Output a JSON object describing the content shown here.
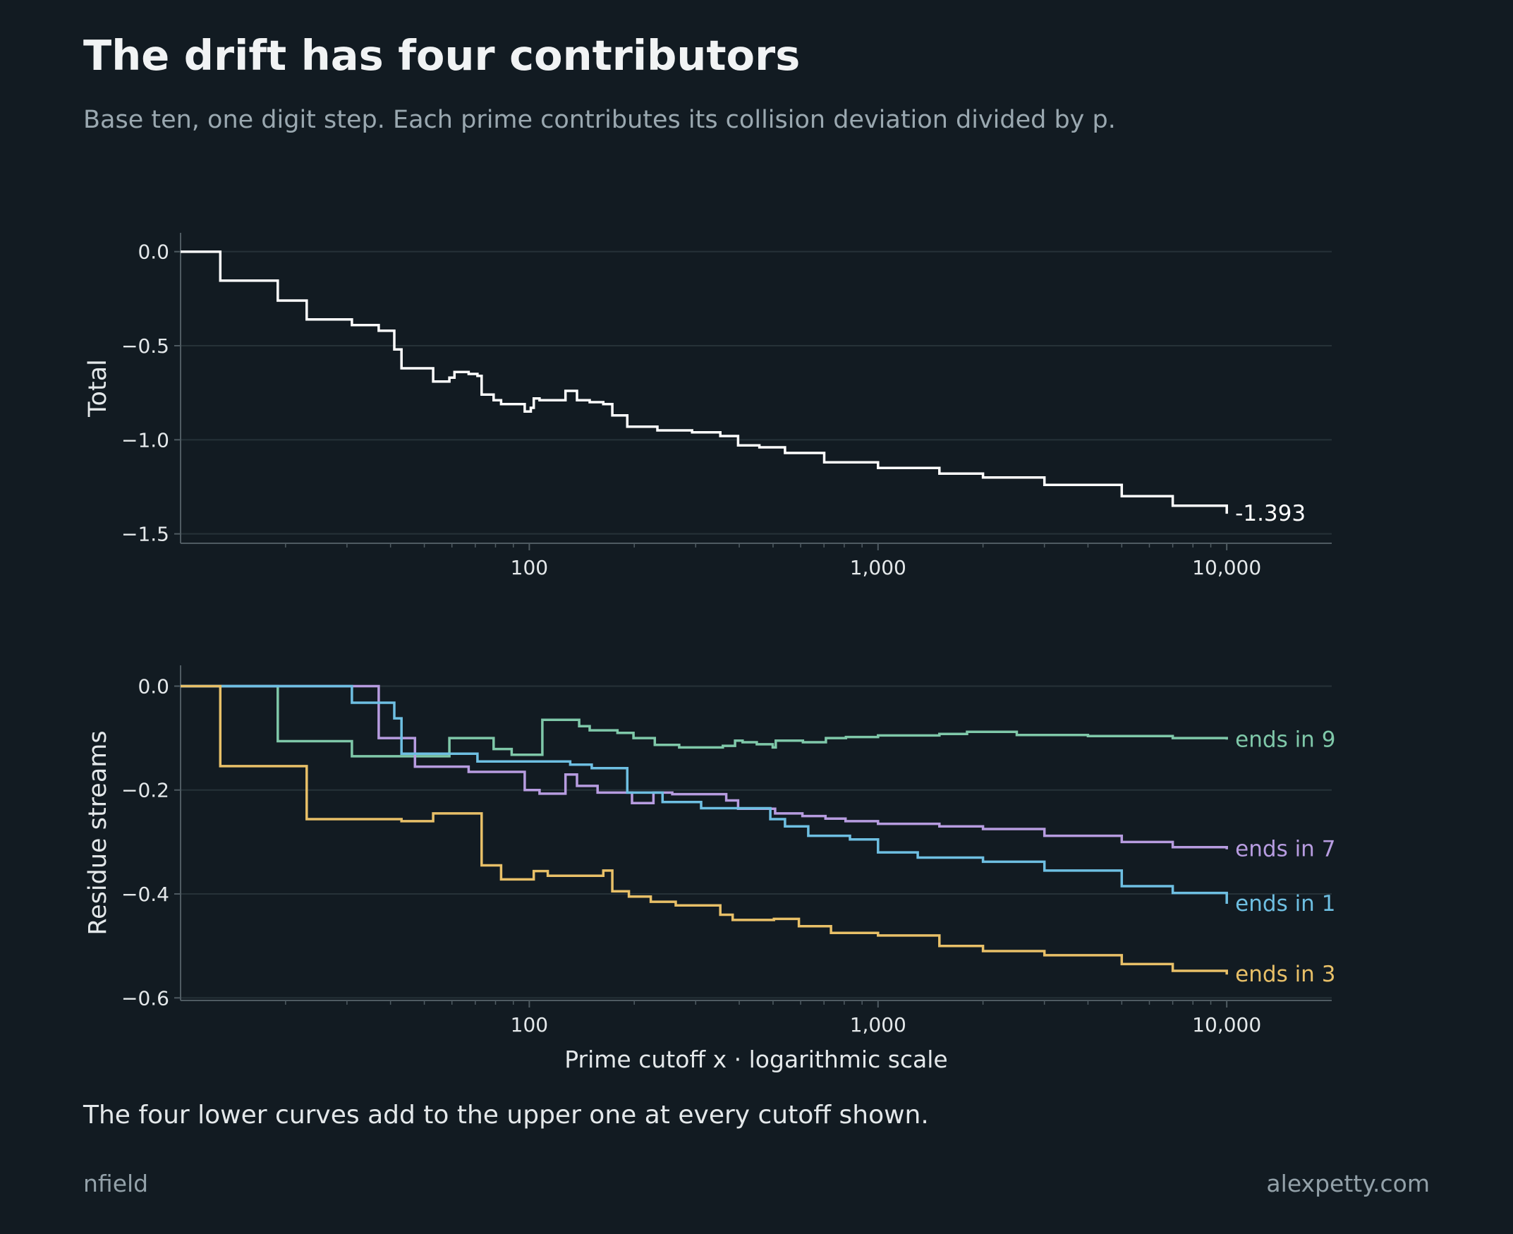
{
  "header": {
    "title": "The drift has four contributors",
    "subtitle": "Base ten, one digit step. Each prime contributes its collision deviation divided by p."
  },
  "caption": "The four lower curves add to the upper one at every cutoff shown.",
  "footer": {
    "left": "nfield",
    "right": "alexpetty.com"
  },
  "colors": {
    "background": "#121b22",
    "grid": "#263238",
    "axis": "#4f5b62",
    "total": "#ffffff",
    "ends_in_9": "#7fc8a9",
    "ends_in_7": "#b79ce0",
    "ends_in_1": "#6ebfe2",
    "ends_in_3": "#e8c068"
  },
  "chart_data": [
    {
      "type": "line",
      "step": true,
      "xscale": "log",
      "xlim": [
        10,
        20000
      ],
      "xticks": [
        100,
        1000,
        10000
      ],
      "xtick_labels": [
        "100",
        "1,000",
        "10,000"
      ],
      "ylim": [
        -1.55,
        0.1
      ],
      "yticks": [
        0.0,
        -0.5,
        -1.0,
        -1.5
      ],
      "ytick_labels": [
        "0.0",
        "−0.5",
        "−1.0",
        "−1.5"
      ],
      "xlabel": "",
      "ylabel": "Total",
      "grid": true,
      "series": [
        {
          "name": "",
          "color": "#ffffff",
          "end_label": "-1.393",
          "points": [
            [
              10,
              0.0
            ],
            [
              13,
              -0.154
            ],
            [
              19,
              -0.26
            ],
            [
              23,
              -0.36
            ],
            [
              31,
              -0.39
            ],
            [
              37,
              -0.42
            ],
            [
              41,
              -0.52
            ],
            [
              43,
              -0.62
            ],
            [
              47,
              -0.62
            ],
            [
              53,
              -0.69
            ],
            [
              59,
              -0.67
            ],
            [
              61,
              -0.64
            ],
            [
              67,
              -0.65
            ],
            [
              71,
              -0.66
            ],
            [
              73,
              -0.76
            ],
            [
              79,
              -0.79
            ],
            [
              83,
              -0.81
            ],
            [
              97,
              -0.85
            ],
            [
              101,
              -0.83
            ],
            [
              103,
              -0.78
            ],
            [
              107,
              -0.79
            ],
            [
              127,
              -0.74
            ],
            [
              137,
              -0.79
            ],
            [
              149,
              -0.8
            ],
            [
              163,
              -0.81
            ],
            [
              173,
              -0.87
            ],
            [
              191,
              -0.93
            ],
            [
              227,
              -0.93
            ],
            [
              233,
              -0.95
            ],
            [
              293,
              -0.96
            ],
            [
              353,
              -0.98
            ],
            [
              397,
              -1.03
            ],
            [
              457,
              -1.04
            ],
            [
              541,
              -1.07
            ],
            [
              701,
              -1.12
            ],
            [
              811,
              -1.12
            ],
            [
              1000,
              -1.15
            ],
            [
              1500,
              -1.18
            ],
            [
              2000,
              -1.2
            ],
            [
              3000,
              -1.24
            ],
            [
              5000,
              -1.3
            ],
            [
              7000,
              -1.35
            ],
            [
              10000,
              -1.393
            ]
          ]
        }
      ]
    },
    {
      "type": "line",
      "step": true,
      "xscale": "log",
      "xlim": [
        10,
        20000
      ],
      "xticks": [
        100,
        1000,
        10000
      ],
      "xtick_labels": [
        "100",
        "1,000",
        "10,000"
      ],
      "ylim": [
        -0.605,
        0.04
      ],
      "yticks": [
        0.0,
        -0.2,
        -0.4,
        -0.6
      ],
      "ytick_labels": [
        "0.0",
        "−0.2",
        "−0.4",
        "−0.6"
      ],
      "xlabel": "Prime cutoff x  ·  logarithmic scale",
      "ylabel": "Residue streams",
      "grid": true,
      "series": [
        {
          "name": "ends in 9",
          "color": "#7fc8a9",
          "points": [
            [
              10,
              0.0
            ],
            [
              19,
              -0.106
            ],
            [
              29,
              -0.106
            ],
            [
              31,
              -0.135
            ],
            [
              59,
              -0.1
            ],
            [
              71,
              -0.1
            ],
            [
              79,
              -0.121
            ],
            [
              89,
              -0.132
            ],
            [
              109,
              -0.065
            ],
            [
              139,
              -0.077
            ],
            [
              149,
              -0.085
            ],
            [
              179,
              -0.09
            ],
            [
              199,
              -0.1
            ],
            [
              229,
              -0.113
            ],
            [
              269,
              -0.118
            ],
            [
              359,
              -0.115
            ],
            [
              389,
              -0.105
            ],
            [
              409,
              -0.108
            ],
            [
              449,
              -0.112
            ],
            [
              499,
              -0.118
            ],
            [
              509,
              -0.105
            ],
            [
              609,
              -0.108
            ],
            [
              709,
              -0.1
            ],
            [
              809,
              -0.098
            ],
            [
              1000,
              -0.095
            ],
            [
              1500,
              -0.092
            ],
            [
              1800,
              -0.088
            ],
            [
              2500,
              -0.094
            ],
            [
              4000,
              -0.096
            ],
            [
              7000,
              -0.1
            ],
            [
              10000,
              -0.103
            ]
          ]
        },
        {
          "name": "ends in 7",
          "color": "#b79ce0",
          "points": [
            [
              10,
              0.0
            ],
            [
              37,
              -0.1
            ],
            [
              47,
              -0.155
            ],
            [
              67,
              -0.165
            ],
            [
              97,
              -0.2
            ],
            [
              107,
              -0.207
            ],
            [
              127,
              -0.17
            ],
            [
              137,
              -0.192
            ],
            [
              157,
              -0.205
            ],
            [
              197,
              -0.225
            ],
            [
              227,
              -0.205
            ],
            [
              257,
              -0.208
            ],
            [
              367,
              -0.22
            ],
            [
              397,
              -0.236
            ],
            [
              507,
              -0.245
            ],
            [
              607,
              -0.25
            ],
            [
              707,
              -0.255
            ],
            [
              807,
              -0.26
            ],
            [
              1000,
              -0.265
            ],
            [
              1500,
              -0.27
            ],
            [
              2000,
              -0.275
            ],
            [
              3000,
              -0.288
            ],
            [
              5000,
              -0.3
            ],
            [
              7000,
              -0.31
            ],
            [
              10000,
              -0.314
            ]
          ]
        },
        {
          "name": "ends in 1",
          "color": "#6ebfe2",
          "points": [
            [
              10,
              0.0
            ],
            [
              31,
              -0.032
            ],
            [
              41,
              -0.062
            ],
            [
              43,
              -0.13
            ],
            [
              71,
              -0.145
            ],
            [
              131,
              -0.151
            ],
            [
              151,
              -0.158
            ],
            [
              191,
              -0.205
            ],
            [
              241,
              -0.223
            ],
            [
              311,
              -0.235
            ],
            [
              491,
              -0.256
            ],
            [
              541,
              -0.27
            ],
            [
              631,
              -0.288
            ],
            [
              831,
              -0.295
            ],
            [
              1000,
              -0.32
            ],
            [
              1300,
              -0.33
            ],
            [
              2000,
              -0.338
            ],
            [
              3000,
              -0.355
            ],
            [
              5000,
              -0.385
            ],
            [
              7000,
              -0.398
            ],
            [
              10000,
              -0.419
            ]
          ]
        },
        {
          "name": "ends in 3",
          "color": "#e8c068",
          "points": [
            [
              10,
              0.0
            ],
            [
              13,
              -0.154
            ],
            [
              23,
              -0.256
            ],
            [
              43,
              -0.26
            ],
            [
              53,
              -0.245
            ],
            [
              73,
              -0.345
            ],
            [
              83,
              -0.372
            ],
            [
              103,
              -0.356
            ],
            [
              113,
              -0.365
            ],
            [
              163,
              -0.355
            ],
            [
              173,
              -0.395
            ],
            [
              193,
              -0.405
            ],
            [
              223,
              -0.415
            ],
            [
              263,
              -0.422
            ],
            [
              353,
              -0.44
            ],
            [
              383,
              -0.45
            ],
            [
              433,
              -0.45
            ],
            [
              503,
              -0.448
            ],
            [
              593,
              -0.462
            ],
            [
              733,
              -0.475
            ],
            [
              1000,
              -0.48
            ],
            [
              1500,
              -0.5
            ],
            [
              2000,
              -0.51
            ],
            [
              3000,
              -0.518
            ],
            [
              5000,
              -0.535
            ],
            [
              7000,
              -0.548
            ],
            [
              10000,
              -0.555
            ]
          ]
        }
      ]
    }
  ]
}
